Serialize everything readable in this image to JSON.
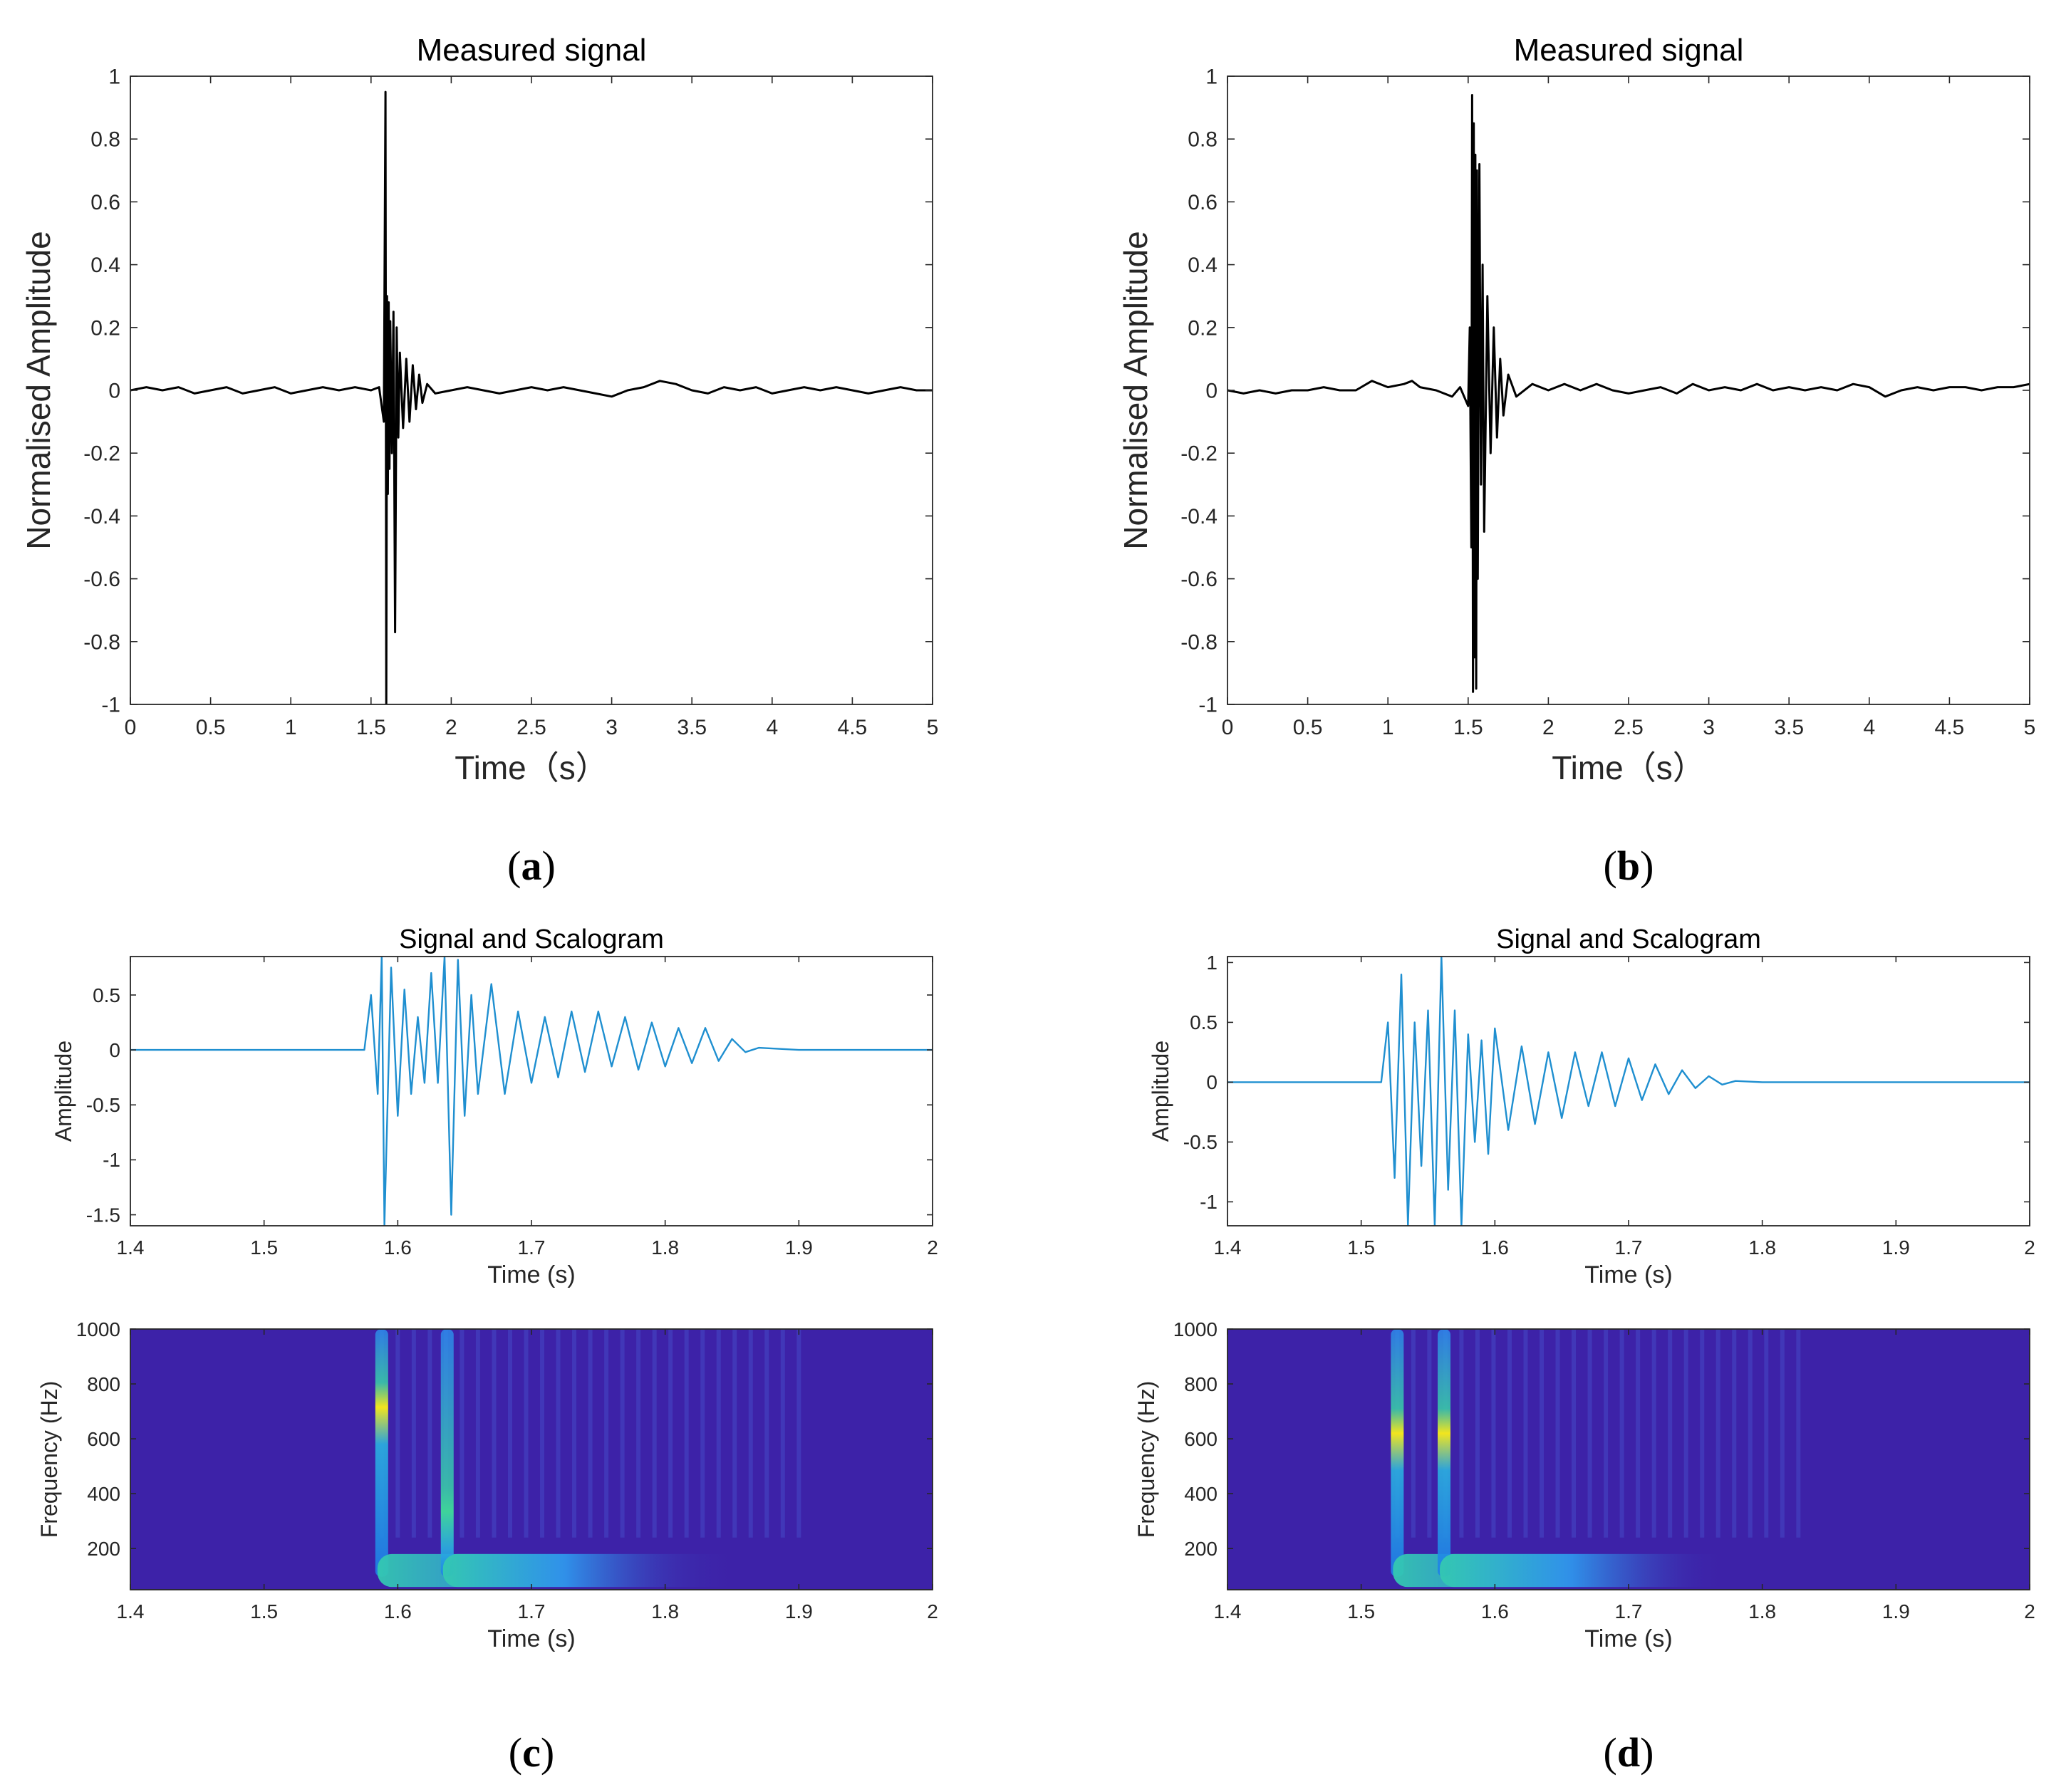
{
  "chart_data": [
    {
      "panel": "a",
      "type": "line",
      "title": "Measured signal",
      "xlabel": "Time（s）",
      "ylabel": "Normalised Amplitude",
      "xlim": [
        0,
        5
      ],
      "ylim": [
        -1,
        1
      ],
      "xticks": [
        "0",
        "0.5",
        "1",
        "1.5",
        "2",
        "2.5",
        "3",
        "3.5",
        "4",
        "4.5",
        "5"
      ],
      "yticks": [
        "1",
        "0.8",
        "0.6",
        "0.4",
        "0.2",
        "0",
        "-0.2",
        "-0.4",
        "-0.6",
        "-0.8",
        "-1"
      ],
      "line_color": "#000000",
      "series": [
        {
          "x": [
            0,
            0.1,
            0.2,
            0.3,
            0.4,
            0.5,
            0.6,
            0.7,
            0.8,
            0.9,
            1.0,
            1.1,
            1.2,
            1.3,
            1.4,
            1.5,
            1.55,
            1.58,
            1.59,
            1.595,
            1.6,
            1.605,
            1.61,
            1.615,
            1.62,
            1.63,
            1.64,
            1.65,
            1.66,
            1.67,
            1.68,
            1.7,
            1.72,
            1.74,
            1.76,
            1.78,
            1.8,
            1.82,
            1.85,
            1.9,
            2.0,
            2.1,
            2.2,
            2.3,
            2.4,
            2.5,
            2.6,
            2.7,
            2.8,
            2.9,
            3.0,
            3.1,
            3.2,
            3.3,
            3.4,
            3.5,
            3.6,
            3.7,
            3.8,
            3.9,
            4.0,
            4.1,
            4.2,
            4.3,
            4.4,
            4.5,
            4.6,
            4.7,
            4.8,
            4.9,
            5.0
          ],
          "y": [
            0,
            0.01,
            0.0,
            0.01,
            -0.01,
            0.0,
            0.01,
            -0.01,
            0.0,
            0.01,
            -0.01,
            0.0,
            0.01,
            0.0,
            0.01,
            0.0,
            0.01,
            -0.1,
            0.95,
            -1.0,
            0.3,
            -0.33,
            0.28,
            -0.25,
            0.22,
            -0.2,
            0.25,
            -0.77,
            0.2,
            -0.15,
            0.12,
            -0.12,
            0.1,
            -0.1,
            0.08,
            -0.06,
            0.05,
            -0.04,
            0.02,
            -0.01,
            0.0,
            0.01,
            0.0,
            -0.01,
            0.0,
            0.01,
            0.0,
            0.01,
            0.0,
            -0.01,
            -0.02,
            0.0,
            0.01,
            0.03,
            0.02,
            0.0,
            -0.01,
            0.01,
            0.0,
            0.01,
            -0.01,
            0.0,
            0.01,
            0.0,
            0.01,
            0.0,
            -0.01,
            0.0,
            0.01,
            0.0,
            0.0
          ]
        }
      ],
      "caption": "(a)"
    },
    {
      "panel": "b",
      "type": "line",
      "title": "Measured signal",
      "xlabel": "Time（s）",
      "ylabel": "Normalised Amplitude",
      "xlim": [
        0,
        5
      ],
      "ylim": [
        -1,
        1
      ],
      "xticks": [
        "0",
        "0.5",
        "1",
        "1.5",
        "2",
        "2.5",
        "3",
        "3.5",
        "4",
        "4.5",
        "5"
      ],
      "yticks": [
        "1",
        "0.8",
        "0.6",
        "0.4",
        "0.2",
        "0",
        "-0.2",
        "-0.4",
        "-0.6",
        "-0.8",
        "-1"
      ],
      "line_color": "#000000",
      "series": [
        {
          "x": [
            0,
            0.1,
            0.2,
            0.3,
            0.4,
            0.5,
            0.6,
            0.7,
            0.8,
            0.9,
            1.0,
            1.1,
            1.15,
            1.2,
            1.3,
            1.4,
            1.45,
            1.5,
            1.51,
            1.52,
            1.525,
            1.53,
            1.535,
            1.54,
            1.545,
            1.55,
            1.555,
            1.56,
            1.57,
            1.58,
            1.59,
            1.6,
            1.62,
            1.64,
            1.66,
            1.68,
            1.7,
            1.72,
            1.75,
            1.8,
            1.9,
            2.0,
            2.1,
            2.2,
            2.3,
            2.4,
            2.5,
            2.6,
            2.7,
            2.8,
            2.9,
            3.0,
            3.1,
            3.2,
            3.3,
            3.4,
            3.5,
            3.6,
            3.7,
            3.8,
            3.9,
            4.0,
            4.1,
            4.2,
            4.3,
            4.4,
            4.5,
            4.6,
            4.7,
            4.8,
            4.9,
            5.0
          ],
          "y": [
            0,
            -0.01,
            0.0,
            -0.01,
            0.0,
            0.0,
            0.01,
            0.0,
            0.0,
            0.03,
            0.01,
            0.02,
            0.03,
            0.01,
            0.0,
            -0.02,
            0.01,
            -0.05,
            0.2,
            -0.5,
            0.94,
            -0.96,
            0.85,
            -0.85,
            0.75,
            -0.95,
            0.7,
            -0.6,
            0.72,
            -0.3,
            0.4,
            -0.45,
            0.3,
            -0.2,
            0.2,
            -0.15,
            0.1,
            -0.08,
            0.05,
            -0.02,
            0.02,
            0.0,
            0.02,
            0.0,
            0.02,
            0.0,
            -0.01,
            0.0,
            0.01,
            -0.01,
            0.02,
            0.0,
            0.01,
            0.0,
            0.02,
            0.0,
            0.01,
            0.0,
            0.01,
            0.0,
            0.02,
            0.01,
            -0.02,
            0.0,
            0.01,
            0.0,
            0.01,
            0.01,
            0.0,
            0.01,
            0.01,
            0.02
          ]
        }
      ],
      "caption": "(b)"
    },
    {
      "panel": "c",
      "type": "line",
      "title": "Signal and Scalogram",
      "xlabel": "Time (s)",
      "ylabel": "Amplitude",
      "xlim": [
        1.4,
        2.0
      ],
      "ylim": [
        -1.6,
        0.85
      ],
      "xticks": [
        "1.4",
        "1.5",
        "1.6",
        "1.7",
        "1.8",
        "1.9",
        "2"
      ],
      "yticks": [
        "0.5",
        "0",
        "-0.5",
        "-1",
        "-1.5"
      ],
      "line_color": "#1f8fd0",
      "series": [
        {
          "x": [
            1.4,
            1.45,
            1.5,
            1.55,
            1.575,
            1.58,
            1.585,
            1.588,
            1.59,
            1.595,
            1.6,
            1.605,
            1.61,
            1.615,
            1.62,
            1.625,
            1.63,
            1.635,
            1.64,
            1.645,
            1.65,
            1.655,
            1.66,
            1.67,
            1.68,
            1.69,
            1.7,
            1.71,
            1.72,
            1.73,
            1.74,
            1.75,
            1.76,
            1.77,
            1.78,
            1.79,
            1.8,
            1.81,
            1.82,
            1.83,
            1.84,
            1.85,
            1.86,
            1.87,
            1.9,
            1.95,
            2.0
          ],
          "y": [
            0,
            0,
            0,
            0,
            0,
            0.5,
            -0.4,
            0.85,
            -1.6,
            0.75,
            -0.6,
            0.55,
            -0.4,
            0.3,
            -0.3,
            0.7,
            -0.3,
            0.85,
            -1.5,
            0.82,
            -0.6,
            0.5,
            -0.4,
            0.6,
            -0.4,
            0.35,
            -0.3,
            0.3,
            -0.25,
            0.35,
            -0.2,
            0.35,
            -0.15,
            0.3,
            -0.18,
            0.25,
            -0.15,
            0.2,
            -0.12,
            0.2,
            -0.1,
            0.1,
            -0.02,
            0.02,
            0.0,
            0.0,
            0.0
          ]
        }
      ]
    },
    {
      "panel": "c-scalogram",
      "type": "heatmap",
      "xlabel": "Time (s)",
      "ylabel": "Frequency (Hz)",
      "xlim": [
        1.4,
        2.0
      ],
      "ylim": [
        50,
        1000
      ],
      "xticks": [
        "1.4",
        "1.5",
        "1.6",
        "1.7",
        "1.8",
        "1.9",
        "2"
      ],
      "yticks": [
        "1000",
        "800",
        "600",
        "400",
        "200"
      ],
      "background_color": "#3d22a8",
      "ridges": [
        {
          "time": 1.588,
          "decay_end": 1.86,
          "peak_freq": 700,
          "intensity": 1.0
        },
        {
          "time": 1.637,
          "decay_end": 1.82,
          "peak_freq": 300,
          "intensity": 0.65
        }
      ],
      "caption": "(c)"
    },
    {
      "panel": "d",
      "type": "line",
      "title": "Signal and Scalogram",
      "xlabel": "Time (s)",
      "ylabel": "Amplitude",
      "xlim": [
        1.4,
        2.0
      ],
      "ylim": [
        -1.2,
        1.05
      ],
      "xticks": [
        "1.4",
        "1.5",
        "1.6",
        "1.7",
        "1.8",
        "1.9",
        "2"
      ],
      "yticks": [
        "1",
        "0.5",
        "0",
        "-0.5",
        "-1"
      ],
      "line_color": "#1f8fd0",
      "series": [
        {
          "x": [
            1.4,
            1.45,
            1.5,
            1.515,
            1.52,
            1.525,
            1.53,
            1.535,
            1.54,
            1.545,
            1.55,
            1.555,
            1.56,
            1.565,
            1.57,
            1.575,
            1.58,
            1.585,
            1.59,
            1.595,
            1.6,
            1.61,
            1.62,
            1.63,
            1.64,
            1.65,
            1.66,
            1.67,
            1.68,
            1.69,
            1.7,
            1.71,
            1.72,
            1.73,
            1.74,
            1.75,
            1.76,
            1.77,
            1.78,
            1.8,
            1.9,
            2.0
          ],
          "y": [
            0,
            0,
            0,
            0,
            0.5,
            -0.8,
            0.9,
            -1.2,
            0.5,
            -0.7,
            0.6,
            -1.2,
            1.05,
            -0.9,
            0.6,
            -1.2,
            0.4,
            -0.5,
            0.35,
            -0.6,
            0.45,
            -0.4,
            0.3,
            -0.35,
            0.25,
            -0.3,
            0.25,
            -0.2,
            0.25,
            -0.2,
            0.2,
            -0.15,
            0.15,
            -0.1,
            0.1,
            -0.05,
            0.05,
            -0.02,
            0.01,
            0.0,
            0.0,
            0.0
          ]
        }
      ]
    },
    {
      "panel": "d-scalogram",
      "type": "heatmap",
      "xlabel": "Time (s)",
      "ylabel": "Frequency (Hz)",
      "xlim": [
        1.4,
        2.0
      ],
      "ylim": [
        50,
        1000
      ],
      "xticks": [
        "1.4",
        "1.5",
        "1.6",
        "1.7",
        "1.8",
        "1.9",
        "2"
      ],
      "yticks": [
        "1000",
        "800",
        "600",
        "400",
        "200"
      ],
      "background_color": "#3d22a8",
      "ridges": [
        {
          "time": 1.527,
          "decay_end": 1.78,
          "peak_freq": 600,
          "intensity": 0.95
        },
        {
          "time": 1.562,
          "decay_end": 1.76,
          "peak_freq": 600,
          "intensity": 0.9
        }
      ],
      "caption": "(d)"
    }
  ]
}
